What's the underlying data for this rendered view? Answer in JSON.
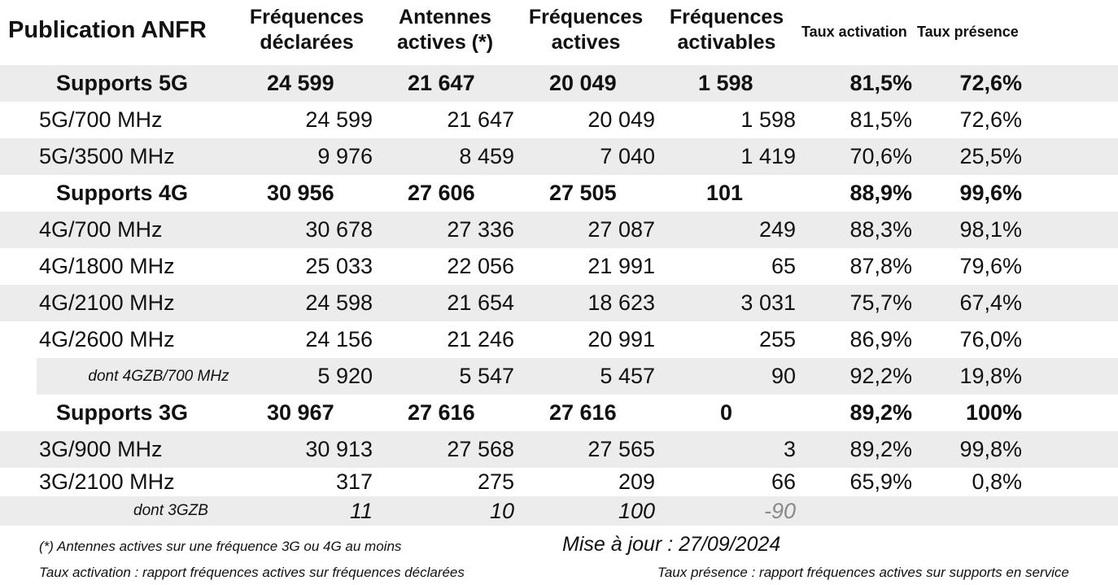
{
  "header": {
    "title": "Publication ANFR",
    "col_freq_declared": [
      "Fréquences",
      "déclarées"
    ],
    "col_active_antennas": [
      "Antennes",
      "actives (*)"
    ],
    "col_freq_active": [
      "Fréquences",
      "actives"
    ],
    "col_freq_activatable": [
      "Fréquences",
      "activables"
    ],
    "col_activation_rate": "Taux activation",
    "col_presence_rate": "Taux présence"
  },
  "rows": [
    {
      "label": "Supports 5G",
      "declared": "24 599",
      "antennas": "21 647",
      "active": "20 049",
      "activatable": "1 598",
      "activation": "81,5%",
      "presence": "72,6%"
    },
    {
      "label": "5G/700 MHz",
      "declared": "24 599",
      "antennas": "21 647",
      "active": "20 049",
      "activatable": "1 598",
      "activation": "81,5%",
      "presence": "72,6%"
    },
    {
      "label": "5G/3500 MHz",
      "declared": "9 976",
      "antennas": "8 459",
      "active": "7 040",
      "activatable": "1 419",
      "activation": "70,6%",
      "presence": "25,5%"
    },
    {
      "label": "Supports 4G",
      "declared": "30 956",
      "antennas": "27 606",
      "active": "27 505",
      "activatable": "101",
      "activation": "88,9%",
      "presence": "99,6%"
    },
    {
      "label": "4G/700 MHz",
      "declared": "30 678",
      "antennas": "27 336",
      "active": "27 087",
      "activatable": "249",
      "activation": "88,3%",
      "presence": "98,1%"
    },
    {
      "label": "4G/1800 MHz",
      "declared": "25 033",
      "antennas": "22 056",
      "active": "21 991",
      "activatable": "65",
      "activation": "87,8%",
      "presence": "79,6%"
    },
    {
      "label": "4G/2100 MHz",
      "declared": "24 598",
      "antennas": "21 654",
      "active": "18 623",
      "activatable": "3 031",
      "activation": "75,7%",
      "presence": "67,4%"
    },
    {
      "label": "4G/2600 MHz",
      "declared": "24 156",
      "antennas": "21 246",
      "active": "20 991",
      "activatable": "255",
      "activation": "86,9%",
      "presence": "76,0%"
    },
    {
      "label": "dont 4GZB/700 MHz",
      "declared": "5 920",
      "antennas": "5 547",
      "active": "5 457",
      "activatable": "90",
      "activation": "92,2%",
      "presence": "19,8%"
    },
    {
      "label": "Supports 3G",
      "declared": "30 967",
      "antennas": "27 616",
      "active": "27 616",
      "activatable": "0",
      "activation": "89,2%",
      "presence": "100%"
    },
    {
      "label": "3G/900 MHz",
      "declared": "30 913",
      "antennas": "27 568",
      "active": "27 565",
      "activatable": "3",
      "activation": "89,2%",
      "presence": "99,8%"
    },
    {
      "label": "3G/2100 MHz",
      "declared": "317",
      "antennas": "275",
      "active": "209",
      "activatable": "66",
      "activation": "65,9%",
      "presence": "0,8%"
    },
    {
      "label": "dont 3GZB",
      "declared": "11",
      "antennas": "10",
      "active": "100",
      "activatable": "-90",
      "activation": "",
      "presence": ""
    }
  ],
  "footer": {
    "note_antennas": "(*) Antennes actives sur une fréquence 3G ou 4G au moins",
    "update": "Mise à jour : 27/09/2024",
    "note_activation": "Taux activation : rapport fréquences actives sur fréquences déclarées",
    "note_presence": "Taux présence : rapport fréquences actives sur supports en service"
  }
}
